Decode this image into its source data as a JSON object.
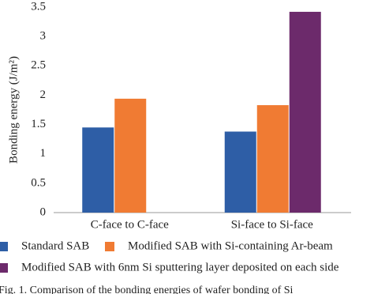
{
  "chart_data": {
    "type": "bar",
    "y_label": "Bonding energy (J/m²)",
    "categories": [
      "C-face to C-face",
      "Si-face to Si-face"
    ],
    "series": [
      {
        "name": "Standard SAB",
        "color": "#2e5ea6",
        "values": [
          1.45,
          1.38
        ]
      },
      {
        "name": "Modified SAB with Si-containing Ar-beam",
        "color": "#f07b33",
        "values": [
          1.94,
          1.83
        ]
      },
      {
        "name": "Modified SAB with 6nm Si sputtering layer deposited on each side",
        "color": "#6c2a6b",
        "values": [
          null,
          3.42
        ]
      }
    ],
    "ylim": [
      0,
      3.5
    ],
    "yticks": [
      0,
      0.5,
      1,
      1.5,
      2,
      2.5,
      3,
      3.5
    ],
    "grid": false,
    "caption": "Fig. 1.  Comparison of the bonding energies of wafer bonding of Si"
  }
}
